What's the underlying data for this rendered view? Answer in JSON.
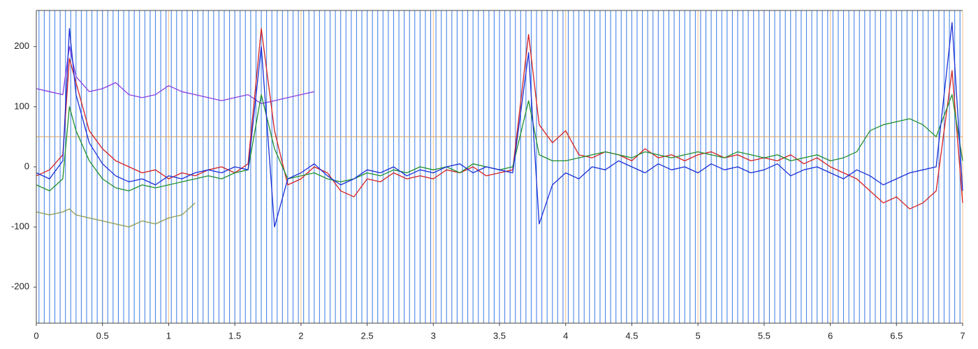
{
  "chart_data": {
    "type": "line",
    "xlim": [
      0,
      7
    ],
    "ylim": [
      -260,
      260
    ],
    "xticks": [
      0,
      0.5,
      1,
      1.5,
      2,
      2.5,
      3,
      3.5,
      4,
      4.5,
      5,
      5.5,
      6,
      6.5,
      7
    ],
    "yticks": [
      -200,
      -100,
      0,
      100,
      200
    ],
    "grid": true,
    "grid_color": "#f3c08a",
    "hline": 50,
    "hline_color": "#d9a060",
    "marker_color": "#4a86e8",
    "markers": [
      0.02,
      0.06,
      0.1,
      0.14,
      0.18,
      0.22,
      0.26,
      0.3,
      0.34,
      0.38,
      0.42,
      0.46,
      0.5,
      0.54,
      0.58,
      0.62,
      0.66,
      0.7,
      0.74,
      0.78,
      0.82,
      0.86,
      0.9,
      0.94,
      0.98,
      1.02,
      1.06,
      1.1,
      1.14,
      1.18,
      1.22,
      1.26,
      1.3,
      1.34,
      1.38,
      1.42,
      1.46,
      1.5,
      1.54,
      1.58,
      1.62,
      1.66,
      1.7,
      1.74,
      1.78,
      1.82,
      1.86,
      1.9,
      1.94,
      1.98,
      2.02,
      2.06,
      2.1,
      2.14,
      2.18,
      2.22,
      2.26,
      2.3,
      2.34,
      2.38,
      2.42,
      2.46,
      2.5,
      2.54,
      2.58,
      2.62,
      2.66,
      2.7,
      2.74,
      2.78,
      2.82,
      2.86,
      2.9,
      2.94,
      2.98,
      3.02,
      3.06,
      3.1,
      3.14,
      3.18,
      3.22,
      3.26,
      3.3,
      3.34,
      3.38,
      3.42,
      3.46,
      3.5,
      3.54,
      3.58,
      3.62,
      3.66,
      3.7,
      3.74,
      3.78,
      3.82,
      3.86,
      3.9,
      3.94,
      3.98,
      4.02,
      4.06,
      4.1,
      4.14,
      4.18,
      4.22,
      4.26,
      4.3,
      4.34,
      4.38,
      4.42,
      4.46,
      4.5,
      4.54,
      4.58,
      4.62,
      4.66,
      4.7,
      4.74,
      4.78,
      4.82,
      4.86,
      4.9,
      4.94,
      4.98,
      5.02,
      5.06,
      5.1,
      5.14,
      5.18,
      5.22,
      5.26,
      5.3,
      5.34,
      5.38,
      5.42,
      5.46,
      5.5,
      5.54,
      5.58,
      5.62,
      5.66,
      5.7,
      5.74,
      5.78,
      5.82,
      5.86,
      5.9,
      5.94,
      5.98,
      6.02,
      6.06,
      6.1,
      6.14,
      6.18,
      6.22,
      6.26,
      6.3,
      6.34,
      6.38,
      6.42,
      6.46,
      6.5,
      6.54,
      6.58,
      6.62,
      6.66,
      6.7,
      6.74,
      6.78,
      6.82,
      6.86,
      6.9,
      6.94,
      6.98
    ],
    "x": [
      0,
      0.1,
      0.2,
      0.25,
      0.3,
      0.4,
      0.5,
      0.6,
      0.7,
      0.8,
      0.9,
      1,
      1.1,
      1.2,
      1.3,
      1.4,
      1.5,
      1.6,
      1.7,
      1.8,
      1.9,
      2,
      2.1,
      2.2,
      2.3,
      2.4,
      2.5,
      2.6,
      2.7,
      2.8,
      2.9,
      3,
      3.1,
      3.2,
      3.3,
      3.4,
      3.5,
      3.6,
      3.72,
      3.8,
      3.9,
      4,
      4.1,
      4.2,
      4.3,
      4.4,
      4.5,
      4.6,
      4.7,
      4.8,
      4.9,
      5,
      5.1,
      5.2,
      5.3,
      5.4,
      5.5,
      5.6,
      5.7,
      5.8,
      5.9,
      6,
      6.1,
      6.2,
      6.3,
      6.4,
      6.5,
      6.6,
      6.7,
      6.8,
      6.92,
      7
    ],
    "series": [
      {
        "color": "#8a9a50",
        "values": [
          -75,
          -80,
          -75,
          -70,
          -80,
          -85,
          -90,
          -95,
          -100,
          -90,
          -95,
          -85,
          -80,
          -60,
          null,
          null,
          null,
          null,
          null,
          null,
          null,
          null,
          null,
          null,
          null,
          null,
          null,
          null,
          null,
          null,
          null,
          null,
          null,
          null,
          null,
          null,
          null,
          null,
          null,
          null,
          null,
          null,
          null,
          null,
          null,
          null,
          null,
          null,
          null,
          null,
          null,
          null,
          null,
          null,
          null,
          null,
          null,
          null,
          null,
          null,
          null,
          null,
          null,
          null,
          null,
          null,
          null,
          null,
          null,
          null,
          null,
          null
        ]
      },
      {
        "color": "#8a3ee0",
        "values": [
          130,
          125,
          120,
          200,
          150,
          125,
          130,
          140,
          120,
          115,
          120,
          135,
          125,
          120,
          115,
          110,
          115,
          120,
          105,
          110,
          115,
          120,
          125,
          null,
          null,
          null,
          null,
          null,
          null,
          null,
          null,
          null,
          null,
          null,
          null,
          null,
          null,
          null,
          null,
          null,
          null,
          null,
          null,
          null,
          null,
          null,
          null,
          null,
          null,
          null,
          null,
          null,
          null,
          null,
          null,
          null,
          null,
          null,
          null,
          null,
          null,
          null,
          null,
          null,
          null,
          null,
          null,
          null,
          null,
          null,
          null,
          null
        ]
      },
      {
        "color": "#d42020",
        "values": [
          -15,
          -5,
          20,
          180,
          140,
          60,
          30,
          10,
          0,
          -10,
          -5,
          -20,
          -10,
          -15,
          -5,
          0,
          -10,
          5,
          230,
          60,
          -30,
          -20,
          0,
          -10,
          -40,
          -50,
          -20,
          -25,
          -10,
          -20,
          -15,
          -20,
          -5,
          -10,
          0,
          -15,
          -10,
          -5,
          220,
          70,
          40,
          60,
          20,
          15,
          25,
          20,
          10,
          30,
          15,
          20,
          10,
          20,
          25,
          15,
          20,
          10,
          15,
          10,
          20,
          5,
          15,
          0,
          -10,
          -20,
          -40,
          -60,
          -50,
          -70,
          -60,
          -40,
          160,
          -60
        ]
      },
      {
        "color": "#1f8f2a",
        "values": [
          -30,
          -40,
          -20,
          100,
          60,
          10,
          -20,
          -35,
          -40,
          -30,
          -35,
          -30,
          -25,
          -20,
          -15,
          -20,
          -10,
          -5,
          120,
          30,
          -20,
          -15,
          -10,
          -20,
          -25,
          -20,
          -10,
          -15,
          -5,
          -10,
          0,
          -5,
          0,
          -10,
          5,
          0,
          -5,
          0,
          110,
          20,
          10,
          10,
          15,
          20,
          25,
          20,
          15,
          25,
          20,
          15,
          20,
          25,
          20,
          15,
          25,
          20,
          15,
          20,
          10,
          15,
          20,
          10,
          15,
          25,
          60,
          70,
          75,
          80,
          70,
          50,
          120,
          10
        ]
      },
      {
        "color": "#1a2fd6",
        "values": [
          -10,
          -20,
          10,
          230,
          120,
          40,
          5,
          -15,
          -25,
          -20,
          -30,
          -15,
          -20,
          -10,
          -5,
          -10,
          0,
          -5,
          200,
          -100,
          -20,
          -10,
          5,
          -15,
          -30,
          -20,
          -5,
          -10,
          0,
          -15,
          -5,
          -10,
          0,
          5,
          -10,
          0,
          -5,
          -10,
          190,
          -95,
          -30,
          -10,
          -20,
          0,
          -5,
          10,
          0,
          -10,
          5,
          -5,
          0,
          -10,
          5,
          -5,
          0,
          -10,
          -5,
          5,
          -15,
          -5,
          0,
          -10,
          -20,
          -5,
          -15,
          -30,
          -20,
          -10,
          -5,
          0,
          240,
          -40
        ]
      }
    ]
  }
}
